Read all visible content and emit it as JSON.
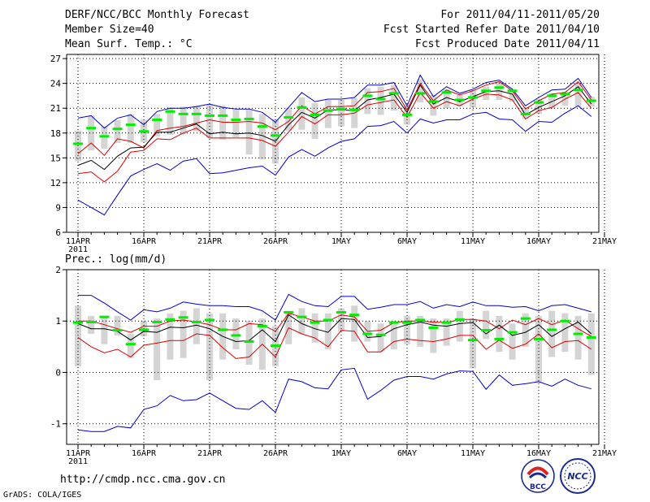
{
  "header": {
    "title": "DERF/NCC/BCC Monthly Forecast",
    "member_size": "Member Size=40",
    "temp_label": "Mean Surf. Temp.: °C",
    "period": "For 2011/04/11-2011/05/20",
    "refer_date": "Fcst Started Refer Date 2011/04/10",
    "produced_date": "Fcst Produced Date 2011/04/11"
  },
  "footer": {
    "url": "http://cmdp.ncc.cma.gov.cn",
    "credit": "GrADS: COLA/IGES",
    "logo_bcc": "BCC",
    "logo_ncc": "NCC"
  },
  "colors": {
    "box": "#d4d4d4",
    "mean": "#00ee00",
    "median": "#000000",
    "inner": "#dd0000",
    "outer": "#0000cc",
    "grid": "#000000"
  },
  "chart_data": [
    {
      "type": "line",
      "title": "Mean Surf. Temp.: °C",
      "x_tick_labels": [
        "11APR",
        "16APR",
        "21APR",
        "26APR",
        "1MAY",
        "6MAY",
        "11MAY",
        "16MAY",
        "21MAY"
      ],
      "x_tick_days": [
        0,
        5,
        10,
        15,
        20,
        25,
        30,
        35,
        40
      ],
      "year_label": "2011",
      "ylim": [
        6,
        27.5
      ],
      "yticks": [
        6,
        9,
        12,
        15,
        18,
        21,
        24,
        27
      ],
      "days": [
        0,
        1,
        2,
        3,
        4,
        5,
        6,
        7,
        8,
        9,
        10,
        11,
        12,
        13,
        14,
        15,
        16,
        17,
        18,
        19,
        20,
        21,
        22,
        23,
        24,
        25,
        26,
        27,
        28,
        29,
        30,
        31,
        32,
        33,
        34,
        35,
        36,
        37,
        38,
        39
      ],
      "series": [
        {
          "name": "max",
          "values": [
            19.8,
            20.1,
            18.6,
            19.8,
            20.2,
            19.0,
            20.6,
            21.0,
            21.0,
            21.2,
            21.5,
            21.1,
            20.9,
            20.9,
            20.5,
            19.3,
            21.1,
            22.9,
            21.8,
            22.1,
            22.1,
            22.3,
            23.8,
            23.8,
            24.1,
            21.3,
            25.0,
            22.4,
            23.6,
            22.8,
            23.3,
            24.1,
            24.4,
            23.3,
            21.3,
            22.3,
            23.2,
            23.3,
            24.6,
            22.3
          ]
        },
        {
          "name": "upper",
          "values": [
            15.5,
            16.8,
            15.3,
            17.3,
            17.0,
            16.2,
            18.3,
            18.6,
            18.8,
            19.2,
            19.6,
            19.3,
            19.3,
            19.4,
            19.2,
            18.4,
            19.4,
            21.3,
            20.3,
            21.2,
            21.2,
            21.3,
            22.9,
            23.0,
            23.4,
            20.8,
            24.0,
            21.9,
            23.2,
            22.6,
            23.1,
            23.8,
            24.2,
            23.1,
            20.9,
            21.9,
            22.7,
            22.9,
            24.2,
            22.0
          ]
        },
        {
          "name": "median",
          "values": [
            14.1,
            14.7,
            13.6,
            15.2,
            16.2,
            16.3,
            18.1,
            18.1,
            18.6,
            19.1,
            17.9,
            18.1,
            17.9,
            18.0,
            17.7,
            17.0,
            19.0,
            20.5,
            19.8,
            20.8,
            20.8,
            20.7,
            22.0,
            22.3,
            22.7,
            20.5,
            23.8,
            21.5,
            22.3,
            21.8,
            22.4,
            23.0,
            23.1,
            22.7,
            20.2,
            21.1,
            21.8,
            22.5,
            23.6,
            21.5
          ]
        },
        {
          "name": "lower",
          "values": [
            13.1,
            13.3,
            12.1,
            13.4,
            15.7,
            15.9,
            17.3,
            17.2,
            18.0,
            18.6,
            17.4,
            17.4,
            17.4,
            17.4,
            17.1,
            16.4,
            18.1,
            20.0,
            19.1,
            20.2,
            20.2,
            20.4,
            21.4,
            21.7,
            22.0,
            19.9,
            22.9,
            21.0,
            21.8,
            21.3,
            22.1,
            22.7,
            22.6,
            22.0,
            19.7,
            20.7,
            21.1,
            22.1,
            22.9,
            21.0
          ]
        },
        {
          "name": "min",
          "values": [
            9.9,
            9.0,
            8.1,
            10.5,
            12.8,
            13.6,
            14.3,
            13.5,
            14.6,
            14.9,
            13.1,
            13.2,
            13.5,
            13.8,
            14.0,
            12.9,
            15.1,
            16.0,
            15.2,
            16.2,
            17.0,
            17.3,
            18.8,
            18.9,
            19.4,
            18.0,
            19.7,
            19.2,
            19.6,
            19.6,
            20.3,
            20.5,
            19.7,
            19.6,
            18.2,
            19.4,
            19.3,
            20.4,
            21.3,
            20.0
          ]
        },
        {
          "name": "mean",
          "values": [
            16.7,
            18.6,
            17.6,
            18.5,
            19.0,
            18.2,
            19.6,
            20.6,
            20.3,
            20.3,
            20.1,
            20.1,
            19.6,
            19.7,
            18.8,
            17.7,
            19.9,
            21.1,
            20.2,
            20.7,
            20.9,
            20.8,
            22.5,
            22.1,
            22.8,
            20.2,
            22.8,
            21.8,
            22.9,
            22.0,
            22.3,
            23.1,
            23.5,
            23.1,
            20.3,
            21.7,
            22.5,
            22.7,
            23.2,
            21.9
          ]
        },
        {
          "name": "box_low",
          "values": [
            14.6,
            15.9,
            16.1,
            16.8,
            16.8,
            16.9,
            17.6,
            17.8,
            17.9,
            18.2,
            17.4,
            17.2,
            17.5,
            15.4,
            14.8,
            14.3,
            18.3,
            18.4,
            17.3,
            18.6,
            18.8,
            18.6,
            20.3,
            20.2,
            20.7,
            19.0,
            21.7,
            20.1,
            21.0,
            21.2,
            21.1,
            22.0,
            22.0,
            21.8,
            19.7,
            20.3,
            20.9,
            21.3,
            21.2,
            21.2
          ]
        },
        {
          "name": "box_high",
          "values": [
            18.3,
            20.1,
            18.8,
            19.6,
            20.3,
            19.6,
            20.3,
            21.1,
            21.2,
            21.3,
            21.4,
            21.3,
            20.8,
            20.8,
            20.3,
            19.7,
            21.0,
            22.3,
            21.6,
            22.0,
            22.0,
            22.2,
            23.4,
            23.6,
            23.8,
            21.4,
            24.5,
            22.6,
            23.3,
            22.6,
            23.2,
            23.6,
            24.1,
            23.3,
            21.1,
            22.1,
            22.8,
            23.0,
            24.1,
            22.4
          ]
        }
      ]
    },
    {
      "type": "line",
      "title": "Prec.: log(mm/d)",
      "x_tick_labels": [
        "11APR",
        "16APR",
        "21APR",
        "26APR",
        "1MAY",
        "6MAY",
        "11MAY",
        "16MAY",
        "21MAY"
      ],
      "x_tick_days": [
        0,
        5,
        10,
        15,
        20,
        25,
        30,
        35,
        40
      ],
      "year_label": "2011",
      "ylim": [
        -1.4,
        2
      ],
      "yticks": [
        -1,
        0,
        1,
        2
      ],
      "days": [
        0,
        1,
        2,
        3,
        4,
        5,
        6,
        7,
        8,
        9,
        10,
        11,
        12,
        13,
        14,
        15,
        16,
        17,
        18,
        19,
        20,
        21,
        22,
        23,
        24,
        25,
        26,
        27,
        28,
        29,
        30,
        31,
        32,
        33,
        34,
        35,
        36,
        37,
        38,
        39
      ],
      "series": [
        {
          "name": "max",
          "values": [
            1.5,
            1.5,
            1.35,
            1.18,
            1.02,
            1.22,
            1.18,
            1.25,
            1.37,
            1.33,
            1.3,
            1.3,
            1.28,
            1.28,
            1.2,
            1.02,
            1.52,
            1.38,
            1.3,
            1.28,
            1.48,
            1.48,
            1.23,
            1.27,
            1.32,
            1.32,
            1.38,
            1.25,
            1.32,
            1.28,
            1.37,
            1.3,
            1.3,
            1.27,
            1.28,
            1.2,
            1.3,
            1.32,
            1.25,
            1.18
          ]
        },
        {
          "name": "upper",
          "values": [
            1.0,
            1.0,
            0.93,
            0.85,
            0.78,
            0.9,
            0.9,
            1.0,
            1.02,
            0.98,
            0.93,
            0.83,
            0.83,
            0.95,
            0.93,
            0.8,
            1.15,
            1.08,
            1.0,
            1.0,
            1.12,
            1.08,
            0.8,
            0.82,
            0.97,
            1.0,
            1.0,
            0.98,
            0.97,
            1.03,
            1.03,
            1.0,
            0.85,
            1.02,
            0.93,
            1.05,
            0.93,
            1.02,
            0.85,
            0.7
          ]
        },
        {
          "name": "median",
          "values": [
            0.95,
            0.85,
            0.85,
            0.8,
            0.63,
            0.8,
            0.78,
            0.88,
            0.87,
            0.92,
            0.85,
            0.7,
            0.6,
            0.62,
            0.83,
            0.6,
            1.12,
            0.95,
            0.85,
            0.78,
            1.05,
            1.03,
            0.68,
            0.7,
            0.85,
            0.93,
            0.98,
            0.92,
            0.9,
            0.95,
            0.97,
            0.75,
            0.92,
            0.72,
            0.78,
            0.93,
            0.7,
            0.85,
            0.98,
            0.75
          ]
        },
        {
          "name": "lower",
          "values": [
            0.68,
            0.5,
            0.38,
            0.45,
            0.3,
            0.53,
            0.57,
            0.62,
            0.62,
            0.75,
            0.72,
            0.48,
            0.27,
            0.3,
            0.55,
            0.3,
            0.87,
            0.75,
            0.67,
            0.5,
            0.82,
            0.8,
            0.4,
            0.4,
            0.6,
            0.65,
            0.62,
            0.6,
            0.65,
            0.72,
            0.72,
            0.45,
            0.63,
            0.47,
            0.55,
            0.75,
            0.48,
            0.6,
            0.62,
            0.45
          ]
        },
        {
          "name": "min",
          "values": [
            -1.12,
            -1.15,
            -1.15,
            -1.05,
            -1.08,
            -0.72,
            -0.65,
            -0.45,
            -0.55,
            -0.53,
            -0.4,
            -0.55,
            -0.7,
            -0.72,
            -0.55,
            -0.78,
            -0.13,
            -0.18,
            -0.3,
            -0.32,
            0.05,
            0.08,
            -0.52,
            -0.35,
            -0.15,
            -0.08,
            -0.08,
            -0.13,
            -0.03,
            0.03,
            0.02,
            -0.33,
            -0.05,
            -0.25,
            -0.22,
            -0.18,
            -0.27,
            -0.13,
            -0.25,
            -0.32
          ]
        },
        {
          "name": "mean",
          "values": [
            0.97,
            0.98,
            1.08,
            0.82,
            0.55,
            0.83,
            0.98,
            1.03,
            1.07,
            0.98,
            1.02,
            0.83,
            0.72,
            0.6,
            0.9,
            0.52,
            1.17,
            1.08,
            0.97,
            1.02,
            1.17,
            1.12,
            0.75,
            0.73,
            0.97,
            0.97,
            1.02,
            0.87,
            0.97,
            1.03,
            0.63,
            0.82,
            0.65,
            0.78,
            1.05,
            0.65,
            0.83,
            1.0,
            0.75,
            0.68
          ]
        },
        {
          "name": "box_low",
          "values": [
            0.12,
            0.75,
            0.55,
            0.72,
            0.28,
            0.7,
            -0.15,
            0.25,
            0.28,
            0.55,
            -0.15,
            0.25,
            0.45,
            0.15,
            0.05,
            0.12,
            0.55,
            0.75,
            0.58,
            0.45,
            0.8,
            0.6,
            0.6,
            0.4,
            0.45,
            0.55,
            0.5,
            0.38,
            0.52,
            0.6,
            0.08,
            0.65,
            0.4,
            0.25,
            0.5,
            -0.2,
            0.3,
            0.4,
            0.25,
            -0.05
          ]
        },
        {
          "name": "box_high",
          "values": [
            1.3,
            1.1,
            1.1,
            1.1,
            0.75,
            1.0,
            1.05,
            1.15,
            1.2,
            1.25,
            1.15,
            1.15,
            1.05,
            1.0,
            1.05,
            0.9,
            1.2,
            1.25,
            1.15,
            1.15,
            1.25,
            1.3,
            1.0,
            0.95,
            1.0,
            1.1,
            1.1,
            1.05,
            1.05,
            1.2,
            1.05,
            1.2,
            1.1,
            0.95,
            1.15,
            1.1,
            1.2,
            1.15,
            1.1,
            1.15
          ]
        }
      ]
    }
  ]
}
